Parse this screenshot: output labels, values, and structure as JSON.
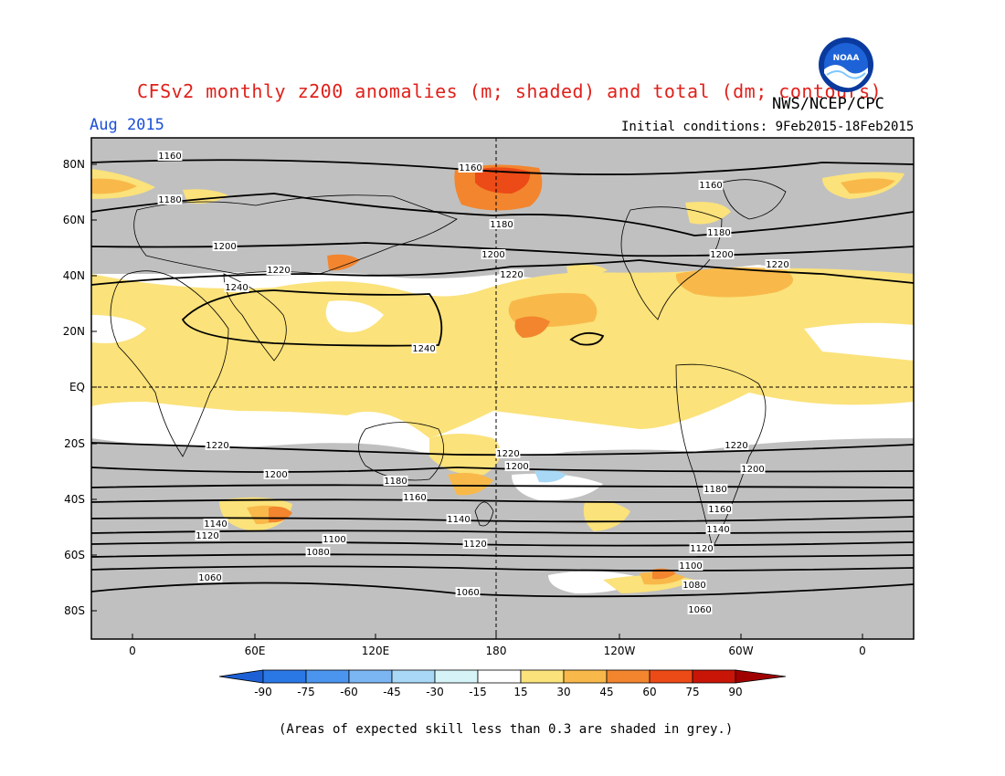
{
  "header": {
    "title": "CFSv2 monthly z200 anomalies (m; shaded) and total (dm; contours)",
    "agency": "NWS/NCEP/CPC",
    "period": "Aug 2015",
    "initial_conditions": "Initial conditions: 9Feb2015-18Feb2015",
    "logo_text": "NOAA"
  },
  "axes": {
    "lat_labels": [
      "80N",
      "60N",
      "40N",
      "20N",
      "EQ",
      "20S",
      "40S",
      "60S",
      "80S"
    ],
    "lon_labels": [
      "0",
      "60E",
      "120E",
      "180",
      "120W",
      "60W",
      "0"
    ]
  },
  "contour_labels": {
    "values": [
      "1160",
      "1180",
      "1200",
      "1220",
      "1240",
      "1140",
      "1120",
      "1100",
      "1080",
      "1060"
    ]
  },
  "colorbar": {
    "ticks": [
      "-90",
      "-75",
      "-60",
      "-45",
      "-30",
      "-15",
      "15",
      "30",
      "45",
      "60",
      "75",
      "90"
    ],
    "colors": [
      "#1d60d6",
      "#2a78e6",
      "#4b95ee",
      "#7bb6f2",
      "#a8d8f5",
      "#d6f3f8",
      "#ffffff",
      "#fbe27a",
      "#f8b94a",
      "#f2852e",
      "#ec4a16",
      "#c81508",
      "#a00000"
    ],
    "neg_arrow_color": "#1d60d6",
    "pos_arrow_color": "#a00000"
  },
  "caption": "(Areas of expected skill less than 0.3 are shaded in grey.)"
}
